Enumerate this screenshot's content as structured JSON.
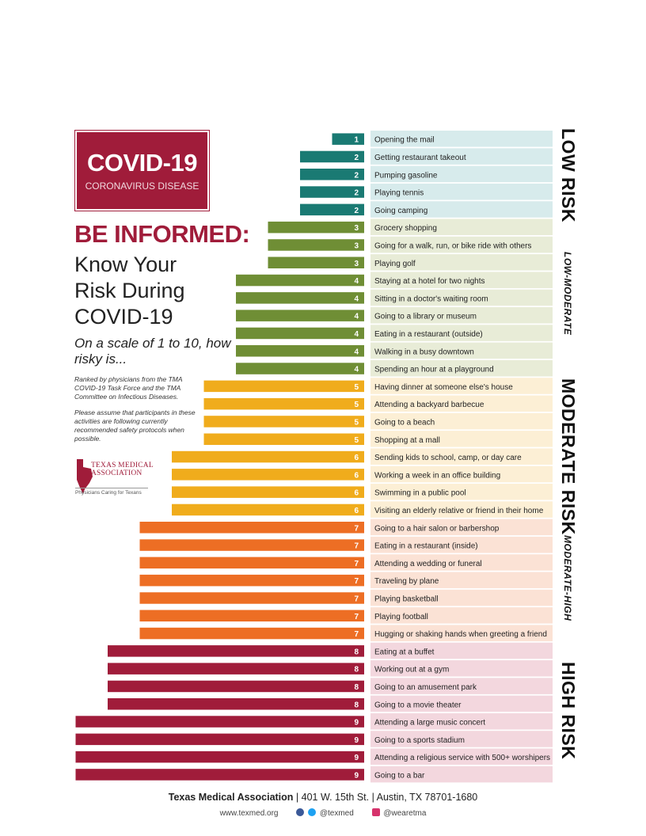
{
  "header": {
    "logo_title": "COVID-19",
    "logo_subtitle": "CORONAVIRUS DISEASE",
    "be_informed": "BE INFORMED:",
    "know_line1": "Know Your",
    "know_line2": "Risk During",
    "know_line3": "COVID-19",
    "scale_question": "On a scale of 1 to 10, how risky is...",
    "ranked_note": "Ranked by physicians from the TMA COVID-19 Task Force and the TMA Committee on Infectious Diseases.",
    "assume_note": "Please assume that participants in these activities are following currently recommended safety protocols when possible.",
    "org_line1": "TEXAS MEDICAL",
    "org_line2": "ASSOCIATION",
    "org_tagline": "Physicians Caring for Texans"
  },
  "risk_categories": [
    {
      "label": "LOW RISK",
      "style": "big"
    },
    {
      "label": "LOW-MODERATE",
      "style": "small"
    },
    {
      "label": "MODERATE RISK",
      "style": "big"
    },
    {
      "label": "MODERATE-HIGH",
      "style": "small"
    },
    {
      "label": "HIGH RISK",
      "style": "big"
    }
  ],
  "colors": {
    "accent": "#a01c3a",
    "level_colors": {
      "1": "#1a7a73",
      "2": "#1a7a73",
      "3": "#6f8e35",
      "4": "#6f8e35",
      "5": "#f0ac1c",
      "6": "#f0ac1c",
      "7": "#ed6e24",
      "8": "#a01c3a",
      "9": "#a01c3a"
    },
    "row_backgrounds": {
      "1": "#d7ebec",
      "2": "#d7ebec",
      "3": "#e8ecd7",
      "4": "#e8ecd7",
      "5": "#fcefd5",
      "6": "#fcefd5",
      "7": "#fbe2d5",
      "8": "#f3d7de",
      "9": "#f3d7de"
    }
  },
  "chart_data": {
    "type": "bar",
    "orientation": "horizontal",
    "xlim": [
      0,
      10
    ],
    "categories": [
      "Opening the mail",
      "Getting restaurant takeout",
      "Pumping gasoline",
      "Playing tennis",
      "Going camping",
      "Grocery shopping",
      "Going for a walk, run, or bike ride with others",
      "Playing golf",
      "Staying at a hotel for two nights",
      "Sitting in a doctor's waiting room",
      "Going to a library or museum",
      "Eating in a restaurant (outside)",
      "Walking in a busy downtown",
      "Spending an hour at a playground",
      "Having dinner at someone else's house",
      "Attending a backyard barbecue",
      "Going to a beach",
      "Shopping at a mall",
      "Sending kids to school, camp, or day care",
      "Working a week in an office building",
      "Swimming in a public pool",
      "Visiting an elderly relative or friend in their home",
      "Going to a hair salon or barbershop",
      "Eating in a restaurant (inside)",
      "Attending a wedding or funeral",
      "Traveling by plane",
      "Playing basketball",
      "Playing football",
      "Hugging or shaking hands when greeting a friend",
      "Eating at a buffet",
      "Working out at a gym",
      "Going to an amusement park",
      "Going to a movie theater",
      "Attending a large music concert",
      "Going to a sports stadium",
      "Attending a religious service with 500+ worshipers",
      "Going to a bar"
    ],
    "values": [
      1,
      2,
      2,
      2,
      2,
      3,
      3,
      3,
      4,
      4,
      4,
      4,
      4,
      4,
      5,
      5,
      5,
      5,
      6,
      6,
      6,
      6,
      7,
      7,
      7,
      7,
      7,
      7,
      7,
      8,
      8,
      8,
      8,
      9,
      9,
      9,
      9
    ]
  },
  "footer": {
    "org": "Texas Medical Association",
    "address": "| 401 W. 15th St. | Austin, TX 78701-1680",
    "website": "www.texmed.org",
    "social_1": "@texmed",
    "social_2": "@wearetma"
  }
}
